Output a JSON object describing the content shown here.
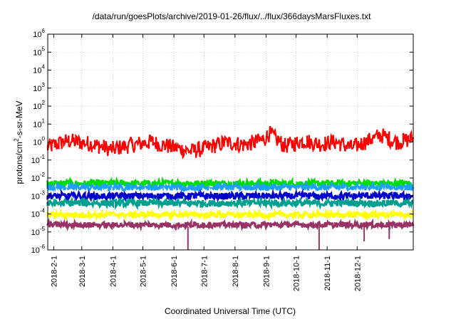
{
  "chart_data": {
    "type": "line",
    "title": "/data/run/goesPlots/archive/2019-01-26/flux/../flux/366daysMarsFluxes.txt",
    "xlabel": "Coordinated Universal Time (UTC)",
    "ylabel_parts": [
      "protons/cm",
      "2",
      "-s-sr-MeV"
    ],
    "yscale": "log",
    "ylim": [
      1e-06,
      1000000.0
    ],
    "y_ticks": [
      {
        "base": "10",
        "exp": "-6"
      },
      {
        "base": "10",
        "exp": "-5"
      },
      {
        "base": "10",
        "exp": "-4"
      },
      {
        "base": "10",
        "exp": "-3"
      },
      {
        "base": "10",
        "exp": "-2"
      },
      {
        "base": "10",
        "exp": "-1"
      },
      {
        "base": "10",
        "exp": "0"
      },
      {
        "base": "10",
        "exp": "1"
      },
      {
        "base": "10",
        "exp": "2"
      },
      {
        "base": "10",
        "exp": "3"
      },
      {
        "base": "10",
        "exp": "4"
      },
      {
        "base": "10",
        "exp": "5"
      },
      {
        "base": "10",
        "exp": "6"
      }
    ],
    "xlim": [
      "2018-01-26",
      "2019-01-26"
    ],
    "x_ticks": [
      "2018-2-1",
      "2018-3-1",
      "2018-4-1",
      "2018-5-1",
      "2018-6-1",
      "2018-7-1",
      "2018-8-1",
      "2018-9-1",
      "2018-10-1",
      "2018-11-1",
      "2018-12-1"
    ],
    "grid": true,
    "series": [
      {
        "color": "#ff0000",
        "x": [
          "2018-01-26",
          "2018-02-15",
          "2018-03-10",
          "2018-04-01",
          "2018-04-20",
          "2018-05-10",
          "2018-06-01",
          "2018-06-20",
          "2018-07-10",
          "2018-07-25",
          "2018-08-10",
          "2018-08-28",
          "2018-09-05",
          "2018-09-20",
          "2018-10-10",
          "2018-10-25",
          "2018-11-10",
          "2018-11-25",
          "2018-12-10",
          "2018-12-25",
          "2019-01-10",
          "2019-01-26"
        ],
        "y": [
          0.5,
          1.2,
          0.8,
          0.4,
          0.7,
          1.0,
          0.5,
          0.3,
          0.6,
          1.0,
          0.7,
          1.2,
          3.0,
          0.6,
          1.2,
          0.8,
          1.0,
          0.5,
          1.0,
          2.5,
          1.0,
          1.5
        ]
      },
      {
        "color": "#00dd00",
        "x": [
          "2018-01-26",
          "2019-01-26"
        ],
        "y": [
          0.005,
          0.005
        ]
      },
      {
        "color": "#1fa0ff",
        "x": [
          "2018-01-26",
          "2019-01-26"
        ],
        "y": [
          0.003,
          0.003
        ]
      },
      {
        "color": "#ffffff",
        "x": [
          "2018-01-26",
          "2019-01-26"
        ],
        "y": [
          0.0015,
          0.0015
        ]
      },
      {
        "color": "#0000cc",
        "x": [
          "2018-01-26",
          "2019-01-26"
        ],
        "y": [
          0.001,
          0.001
        ]
      },
      {
        "color": "#00a090",
        "x": [
          "2018-01-26",
          "2019-01-26"
        ],
        "y": [
          0.0004,
          0.0004
        ]
      },
      {
        "color": "#ffff00",
        "x": [
          "2018-01-26",
          "2019-01-26"
        ],
        "y": [
          9e-05,
          9e-05
        ]
      },
      {
        "color": "#993366",
        "x": [
          "2018-01-26",
          "2019-01-26"
        ],
        "y": [
          2.5e-05,
          2.5e-05
        ]
      }
    ]
  }
}
